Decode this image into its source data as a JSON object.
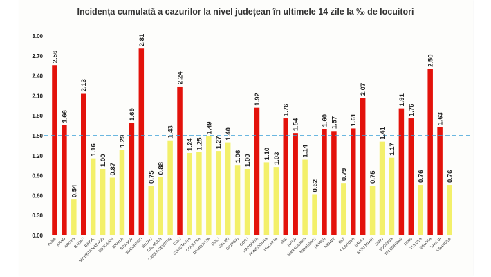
{
  "chart_data": {
    "type": "bar",
    "title": "Incidența cumulată a cazurilor la nivel județean în ultimele 14 zile la ‰ de locuitori",
    "xlabel": "",
    "ylabel": "",
    "ylim": [
      0,
      3.0
    ],
    "yticks": [
      "0.00",
      "0.30",
      "0.60",
      "0.90",
      "1.20",
      "1.50",
      "1.80",
      "2.10",
      "2.40",
      "2.70",
      "3.00"
    ],
    "threshold": 1.5,
    "grid": false,
    "colors": {
      "above": "#e3120b",
      "below": "#f3f06a",
      "threshold": "#3aa0d8"
    },
    "categories": [
      "ALBA",
      "ARAD",
      "ARGES",
      "BACAU",
      "BIHOR",
      "BISTRITA NASAUD",
      "BOTOSANI",
      "BRAILA",
      "BRASOV",
      "BUCURESTI",
      "BUZAU",
      "CALARASI",
      "CARAS-SEVERIN",
      "CLUJ",
      "CONSTANTA",
      "COVASNA",
      "DAMBOVITA",
      "DOLJ",
      "GALATI",
      "GIURGIU",
      "GORJ",
      "HARGHITA",
      "HUNEDOARA",
      "IALOMITA",
      "IASI",
      "ILFOV",
      "MARAMURES",
      "MEHEDINTI",
      "MURES",
      "NEAMT",
      "OLT",
      "PRAHOVA",
      "SALAJ",
      "SATU MARE",
      "SIBIU",
      "SUCEAVA",
      "TELEORMAN",
      "TIMIS",
      "TULCEA",
      "VALCEA",
      "VASLUI",
      "VRANCEA"
    ],
    "values": [
      2.56,
      1.66,
      0.54,
      2.13,
      1.16,
      1.0,
      0.87,
      1.29,
      1.69,
      2.81,
      0.75,
      0.88,
      1.43,
      2.24,
      1.24,
      1.25,
      1.49,
      1.27,
      1.4,
      1.06,
      1.0,
      1.92,
      1.1,
      1.03,
      1.76,
      1.54,
      1.14,
      0.62,
      1.6,
      1.57,
      0.79,
      1.61,
      2.07,
      0.75,
      1.41,
      1.17,
      1.91,
      1.76,
      0.76,
      2.5,
      1.63,
      0.76
    ]
  }
}
